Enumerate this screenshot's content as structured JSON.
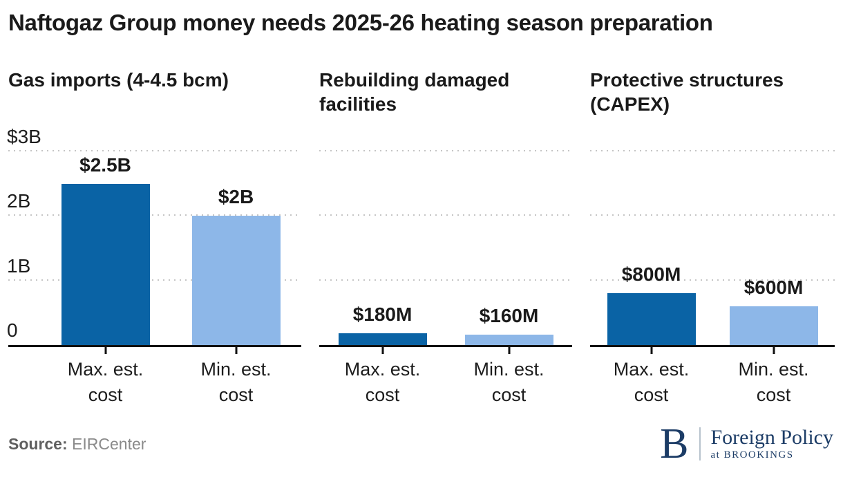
{
  "title": "Naftogaz Group money needs 2025-26 heating season preparation",
  "source": {
    "label": "Source:",
    "value": "EIRCenter"
  },
  "logo": {
    "monogram": "B",
    "wordmark": "Foreign Policy",
    "tagline": "at BROOKINGS"
  },
  "colors": {
    "max_series": "#0a63a5",
    "min_series": "#8db7e8",
    "axis": "#111111",
    "gridline": "#c5c5c5",
    "logo_navy": "#1c3c66"
  },
  "chart_data": {
    "type": "bar",
    "title": "Naftogaz Group money needs 2025-26 heating season preparation",
    "unit": "USD billions",
    "ylim": [
      0,
      3
    ],
    "yticks": [
      {
        "value": 3,
        "label": "$3B"
      },
      {
        "value": 2,
        "label": "2B"
      },
      {
        "value": 1,
        "label": "1B"
      },
      {
        "value": 0,
        "label": "0"
      }
    ],
    "grid": "dotted-horizontal",
    "legend": "none",
    "categories": [
      "Max. est. cost",
      "Min. est. cost"
    ],
    "series_colors": {
      "max": "#0a63a5",
      "min": "#8db7e8"
    },
    "panels": [
      {
        "subtitle": "Gas imports (4-4.5 bcm)",
        "bars": [
          {
            "category": "Max. est. cost",
            "series": "max",
            "value": 2.5,
            "label": "$2.5B"
          },
          {
            "category": "Min. est. cost",
            "series": "min",
            "value": 2.0,
            "label": "$2B"
          }
        ]
      },
      {
        "subtitle": "Rebuilding damaged facilities",
        "bars": [
          {
            "category": "Max. est. cost",
            "series": "max",
            "value": 0.18,
            "label": "$180M"
          },
          {
            "category": "Min. est. cost",
            "series": "min",
            "value": 0.16,
            "label": "$160M"
          }
        ]
      },
      {
        "subtitle": "Protective structures (CAPEX)",
        "bars": [
          {
            "category": "Max. est. cost",
            "series": "max",
            "value": 0.8,
            "label": "$800M"
          },
          {
            "category": "Min. est. cost",
            "series": "min",
            "value": 0.6,
            "label": "$600M"
          }
        ]
      }
    ]
  }
}
